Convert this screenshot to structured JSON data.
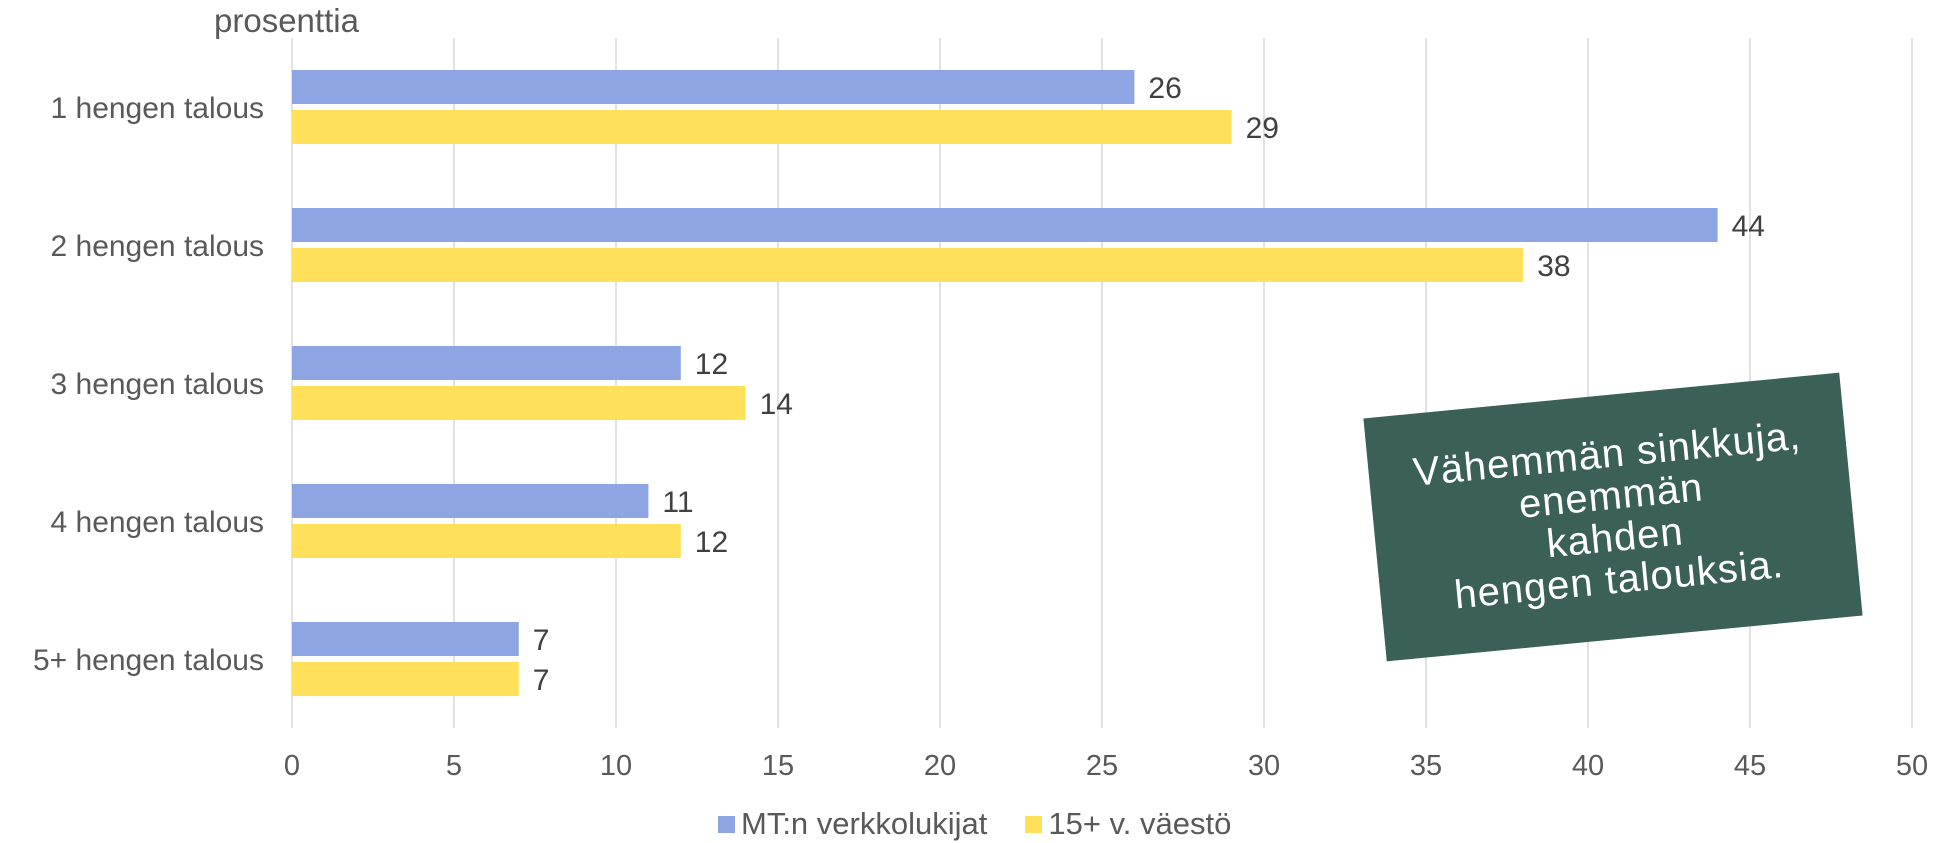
{
  "chart_data": {
    "type": "bar",
    "orientation": "horizontal",
    "unit_label": "prosenttia",
    "categories": [
      "1 hengen talous",
      "2 hengen talous",
      "3 hengen talous",
      "4 hengen talous",
      "5+ hengen talous"
    ],
    "series": [
      {
        "name": "MT:n verkkolukijat",
        "color": "#8ea5e3",
        "values": [
          26,
          44,
          12,
          11,
          7
        ]
      },
      {
        "name": "15+ v. väestö",
        "color": "#ffe05a",
        "values": [
          29,
          38,
          14,
          12,
          7
        ]
      }
    ],
    "xlim": [
      0,
      50
    ],
    "xticks": [
      0,
      5,
      10,
      15,
      20,
      25,
      30,
      35,
      40,
      45,
      50
    ],
    "grid": "vertical",
    "data_labels": true,
    "legend_position": "bottom"
  },
  "callout": {
    "lines": [
      "Vähemmän sinkkuja,",
      "enemmän",
      "kahden",
      "hengen talouksia."
    ],
    "background_color": "#3a6058"
  }
}
